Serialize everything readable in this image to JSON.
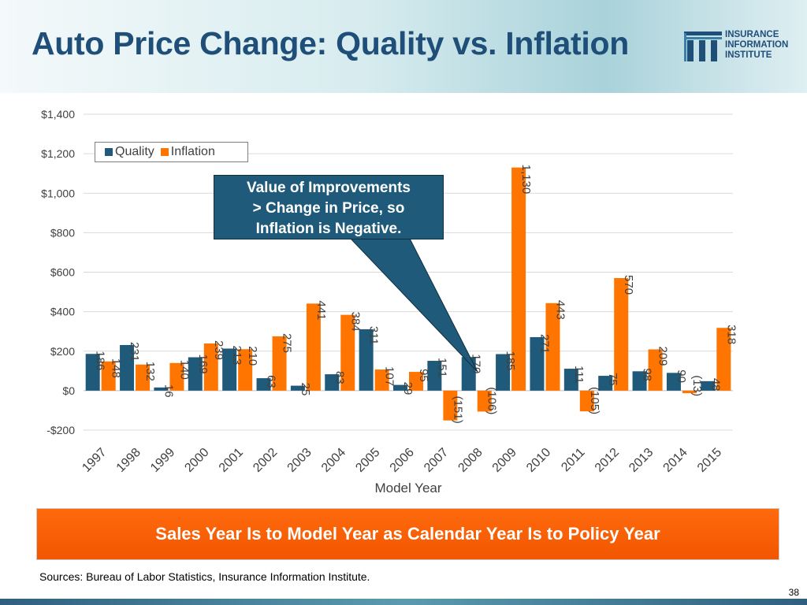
{
  "title": "Auto Price Change: Quality vs. Inflation",
  "logo": {
    "line1": "INSURANCE",
    "line2": "INFORMATION",
    "line3": "INSTITUTE"
  },
  "callout": {
    "line1": "Value of Improvements",
    "line2": "> Change in Price, so",
    "line3": "Inflation is Negative."
  },
  "banner": "Sales Year Is to Model Year as Calendar Year Is to Policy Year",
  "sources": "Sources: Bureau of Labor Statistics, Insurance Information Institute.",
  "page_number": "38",
  "colors": {
    "quality": "#1f5a7a",
    "inflation": "#ff7500",
    "title": "#1f4e79",
    "grid": "#d9d9d9"
  },
  "chart_data": {
    "type": "bar",
    "title": "",
    "xlabel": "Model Year",
    "ylabel": "",
    "ylim": [
      -200,
      1400
    ],
    "yticks": [
      -200,
      0,
      200,
      400,
      600,
      800,
      1000,
      1200,
      1400
    ],
    "ytick_labels": [
      "-$200",
      "$0",
      "$200",
      "$400",
      "$600",
      "$800",
      "$1,000",
      "$1,200",
      "$1,400"
    ],
    "categories": [
      "1997",
      "1998",
      "1999",
      "2000",
      "2001",
      "2002",
      "2003",
      "2004",
      "2005",
      "2006",
      "2007",
      "2008",
      "2009",
      "2010",
      "2011",
      "2012",
      "2013",
      "2014",
      "2015"
    ],
    "series": [
      {
        "name": "Quality",
        "values": [
          186,
          231,
          16,
          169,
          213,
          63,
          25,
          83,
          311,
          29,
          151,
          170,
          185,
          271,
          111,
          75,
          98,
          90,
          48
        ],
        "labels": [
          "186",
          "231",
          "16",
          "169",
          "213",
          "63",
          "25",
          "83",
          "311",
          "29",
          "151",
          "170",
          "185",
          "271",
          "111",
          "75",
          "98",
          "90",
          "48"
        ]
      },
      {
        "name": "Inflation",
        "values": [
          148,
          132,
          140,
          239,
          210,
          275,
          441,
          384,
          107,
          95,
          -151,
          -106,
          1130,
          443,
          -105,
          570,
          209,
          -13,
          318
        ],
        "labels": [
          "148",
          "132",
          "140",
          "239",
          "210",
          "275",
          "441",
          "384",
          "107",
          "95",
          "(151)",
          "(106)",
          "1,130",
          "443",
          "(105)",
          "570",
          "209",
          "(13)",
          "318"
        ]
      }
    ],
    "legend": [
      "Quality",
      "Inflation"
    ],
    "legend_position": "top-left",
    "grid": true
  }
}
